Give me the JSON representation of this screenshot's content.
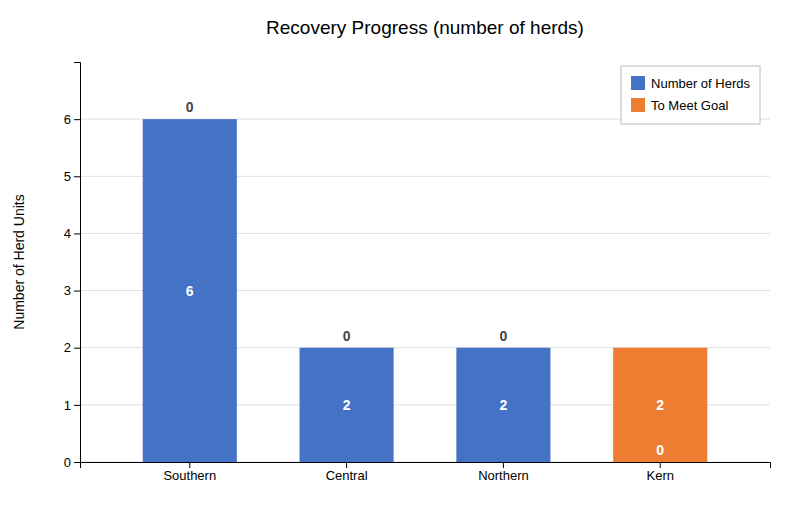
{
  "chart_data": {
    "type": "bar",
    "title": "Recovery Progress (number of herds)",
    "categories": [
      "Southern",
      "Central",
      "Northern",
      "Kern"
    ],
    "series": [
      {
        "name": "Number of Herds",
        "color": "#4472C4",
        "values": [
          6,
          2,
          2,
          0
        ]
      },
      {
        "name": "To Meet Goal",
        "color": "#ED7D31",
        "values": [
          0,
          0,
          0,
          2
        ]
      }
    ],
    "ylabel": "Number of Herd Units",
    "ylim": [
      0,
      7
    ],
    "yticks": [
      0,
      1,
      2,
      3,
      4,
      5,
      6
    ],
    "stacked": true,
    "grid": true,
    "legend": "upper right",
    "data_labels": true
  }
}
